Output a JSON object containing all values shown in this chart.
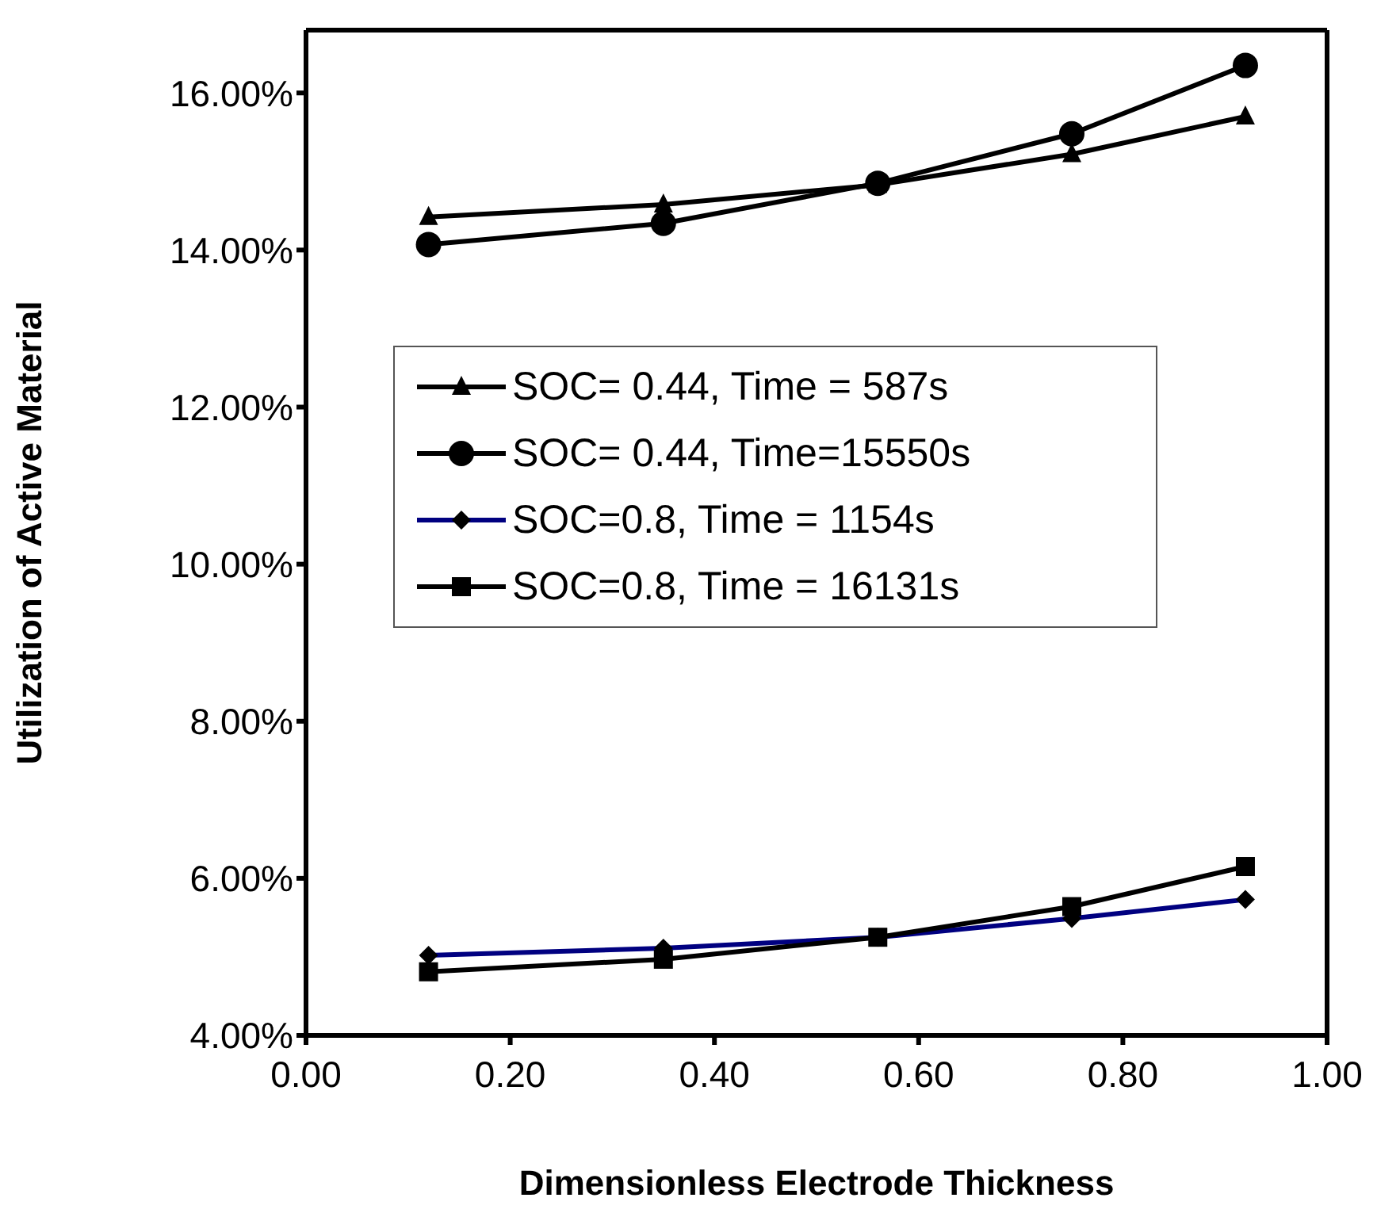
{
  "chart_data": {
    "type": "line",
    "xlabel": "Dimensionless Electrode Thickness",
    "ylabel": "Utilization of Active Material",
    "x": [
      0.12,
      0.35,
      0.56,
      0.75,
      0.92
    ],
    "series": [
      {
        "name": "SOC= 0.44, Time = 587s",
        "color": "#000000",
        "marker": "triangle",
        "values": [
          14.42,
          14.58,
          14.83,
          15.22,
          15.7
        ]
      },
      {
        "name": "SOC= 0.44, Time=15550s",
        "color": "#000000",
        "marker": "circle",
        "values": [
          14.07,
          14.34,
          14.85,
          15.48,
          16.35
        ]
      },
      {
        "name": "SOC=0.8, Time = 1154s",
        "color": "#000080",
        "marker": "diamond",
        "values": [
          5.02,
          5.11,
          5.25,
          5.49,
          5.73
        ]
      },
      {
        "name": "SOC=0.8, Time = 16131s",
        "color": "#000000",
        "marker": "square",
        "values": [
          4.81,
          4.97,
          5.25,
          5.64,
          6.15
        ]
      }
    ],
    "xlim": [
      0,
      1
    ],
    "xticks": [
      {
        "value": 0,
        "label": "0.00"
      },
      {
        "value": 0.2,
        "label": "0.20"
      },
      {
        "value": 0.4,
        "label": "0.40"
      },
      {
        "value": 0.6,
        "label": "0.60"
      },
      {
        "value": 0.8,
        "label": "0.80"
      },
      {
        "value": 1,
        "label": "1.00"
      }
    ],
    "ylim": [
      4,
      16.8
    ],
    "yticks": [
      {
        "value": 4,
        "label": "4.00%"
      },
      {
        "value": 6,
        "label": "6.00%"
      },
      {
        "value": 8,
        "label": "8.00%"
      },
      {
        "value": 10,
        "label": "10.00%"
      },
      {
        "value": 12,
        "label": "12.00%"
      },
      {
        "value": 14,
        "label": "14.00%"
      },
      {
        "value": 16,
        "label": "16.00%"
      }
    ],
    "grid": false,
    "legend": "left",
    "line_style": "solid"
  }
}
